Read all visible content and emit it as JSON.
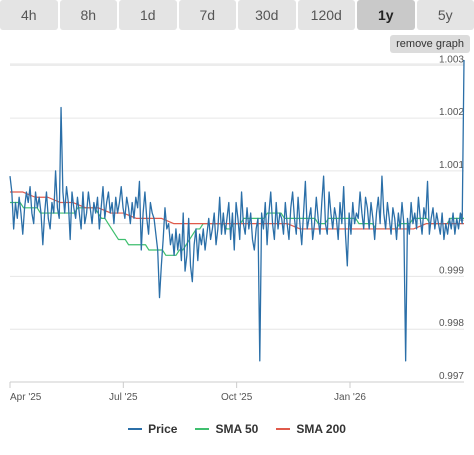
{
  "tabs": [
    {
      "label": "4h",
      "active": false
    },
    {
      "label": "8h",
      "active": false
    },
    {
      "label": "1d",
      "active": false
    },
    {
      "label": "7d",
      "active": false
    },
    {
      "label": "30d",
      "active": false
    },
    {
      "label": "120d",
      "active": false
    },
    {
      "label": "1y",
      "active": true
    },
    {
      "label": "5y",
      "active": false
    }
  ],
  "remove_graph_label": "remove graph",
  "colors": {
    "price": "#2b6fa8",
    "sma50": "#3fbf6f",
    "sma200": "#e05a4b"
  },
  "chart_data": {
    "type": "line",
    "x_ticks": [
      "Apr '25",
      "Jul '25",
      "Oct '25",
      "Jan '26"
    ],
    "y_ticks": [
      "1.003",
      "1.002",
      "1.001",
      "1",
      "0.999",
      "0.998",
      "0.997"
    ],
    "ylim": [
      0.997,
      1.0031
    ],
    "grid": true,
    "legend": "bottom",
    "series": [
      {
        "name": "Price",
        "key": "price"
      },
      {
        "name": "SMA 50",
        "key": "sma50"
      },
      {
        "name": "SMA 200",
        "key": "sma200"
      }
    ],
    "price_values": [
      1.0009,
      1.0006,
      0.9999,
      1.0004,
      1.0001,
      1.0005,
      1.0002,
      0.9998,
      1.0003,
      1.0006,
      1.0004,
      1.0007,
      1.0002,
      1.0,
      1.0006,
      1.0003,
      1.0005,
      1.0002,
      0.9996,
      1.0002,
      1.0006,
      1.0001,
      0.9999,
      1.0004,
      1.0002,
      1.001,
      1.0003,
      1.0001,
      1.0022,
      1.0006,
      1.0002,
      1.0007,
      1.0004,
      0.9997,
      1.0006,
      1.0003,
      1.0001,
      1.0005,
      1.0002,
      0.9999,
      1.0006,
      1.0,
      1.0002,
      1.0006,
      1.0003,
      1.0,
      1.0004,
      1.0002,
      1.0005,
      0.9999,
      1.0003,
      1.0007,
      1.0001,
      1.0004,
      1.0006,
      1.0002,
      1.0004,
      1.0,
      1.0005,
      1.0002,
      1.0004,
      1.0007,
      1.0003,
      1.0001,
      1.0005,
      1.0003,
      1.0,
      1.0004,
      1.0001,
      1.0005,
      1.0003,
      1.0008,
      0.9995,
      1.0002,
      1.0006,
      1.0001,
      0.9998,
      1.0004,
      1.0002,
      1.0001,
      0.9998,
      0.9995,
      0.9986,
      0.9992,
      0.9997,
      1.0003,
      0.9999,
      1.0,
      0.9996,
      0.9998,
      0.9994,
      0.9999,
      0.9995,
      0.9998,
      0.9993,
      1.0002,
      0.9991,
      0.9994,
      1.0001,
      0.9992,
      0.9989,
      0.9996,
      0.9999,
      0.9993,
      0.9998,
      0.9996,
      0.9999,
      0.9995,
      0.9998,
      1.0001,
      0.9997,
      0.9999,
      1.0002,
      0.9996,
      0.9999,
      1.0005,
      0.9998,
      1.0002,
      0.9998,
      1.0001,
      1.0004,
      0.9997,
      1.0002,
      0.9995,
      1.0004,
      1.0001,
      0.9997,
      1.0006,
      1.0,
      0.9998,
      1.0003,
      0.9999,
      1.0002,
      0.9997,
      0.9995,
      0.9999,
      1.0001,
      0.9974,
      1.0002,
      0.9999,
      1.0004,
      0.9996,
      1.0002,
      1.0006,
      1.0,
      0.9997,
      1.0004,
      0.9999,
      1.0002,
      1.0001,
      0.9998,
      1.0004,
      1.0,
      0.9997,
      1.0003,
      1.0006,
      1.0001,
      0.9998,
      1.0005,
      1.0,
      0.9996,
      1.0002,
      1.0008,
      0.9999,
      1.0001,
      1.0003,
      0.9997,
      1.0,
      1.0005,
      1.0001,
      0.9998,
      1.0004,
      1.0009,
      1.0,
      0.9998,
      1.0006,
      1.0002,
      0.9999,
      1.0003,
      1.0001,
      0.9997,
      1.0004,
      1.0,
      1.0007,
      0.9998,
      0.9992,
      1.0002,
      0.9998,
      1.0004,
      1.0,
      1.0002,
      1.0001,
      1.0006,
      1.0002,
      0.9999,
      1.0005,
      1.0003,
      0.9999,
      1.0004,
      1.0001,
      0.9997,
      1.0002,
      1.0005,
      1.0,
      1.0009,
      1.0002,
      0.9999,
      1.0004,
      1.0001,
      0.9998,
      1.0003,
      1.0001,
      0.9997,
      1.0002,
      0.9999,
      1.0004,
      1.0,
      0.9974,
      1.0001,
      0.9998,
      1.0004,
      1.0,
      1.0002,
      0.9999,
      1.0005,
      1.0001,
      0.9998,
      1.0003,
      1.0001,
      1.0008,
      0.9998,
      1.0001,
      1.0003,
      0.9999,
      1.0002,
      1.0,
      0.9998,
      1.0002,
      0.9997,
      1.0,
      0.9998,
      1.0001,
      0.9999,
      1.0002,
      0.9998,
      1.0001,
      0.9999,
      1.0002,
      1.0,
      1.0031
    ],
    "sma50_values": [
      1.0004,
      1.0004,
      1.0004,
      1.0004,
      1.0003,
      1.0003,
      1.0003,
      1.0003,
      1.0003,
      1.0002,
      1.0002,
      1.0002,
      1.0002,
      1.0002,
      1.0002,
      1.0002,
      1.0002,
      1.0002,
      1.0002,
      1.0002,
      1.0003,
      1.0003,
      1.0003,
      1.0003,
      1.0003,
      1.0003,
      1.0002,
      1.0001,
      1.0001,
      1.0,
      0.9999,
      0.9998,
      0.9997,
      0.9997,
      0.9997,
      0.9996,
      0.9996,
      0.9996,
      0.9996,
      0.9996,
      0.9996,
      0.9995,
      0.9995,
      0.9995,
      0.9995,
      0.9995,
      0.9994,
      0.9994,
      0.9994,
      0.9994,
      0.9995,
      0.9995,
      0.9996,
      0.9997,
      0.9998,
      0.9999,
      0.9999,
      1.0,
      1.0,
      1.0,
      1.0,
      1.0,
      1.0,
      1.0,
      0.9999,
      0.9999,
      1.0,
      1.0,
      1.0,
      1.0001,
      1.0001,
      1.0001,
      1.0001,
      1.0001,
      1.0001,
      1.0001,
      1.0002,
      1.0002,
      1.0002,
      1.0002,
      1.0002,
      1.0001,
      1.0001,
      1.0001,
      1.0001,
      1.0001,
      1.0001,
      1.0001,
      1.0001,
      1.0001,
      1.0001,
      1.0,
      1.0,
      1.0,
      1.0001,
      1.0001,
      1.0001,
      1.0001,
      1.0001,
      1.0001,
      1.0001,
      1.0001,
      1.0001,
      1.0,
      1.0,
      1.0,
      1.0,
      1.0,
      0.9999,
      0.9999,
      0.9999,
      0.9999,
      0.9999,
      0.9999,
      0.9999,
      1.0,
      1.0,
      1.0,
      1.0,
      1.0001,
      1.0001,
      1.0001,
      1.0001,
      1.0001,
      1.0,
      1.0,
      1.0,
      1.0,
      1.0,
      1.0,
      1.0001,
      1.0001,
      1.0001,
      1.0001,
      1.0001
    ],
    "sma50_start_index": 0,
    "sma200_values": [
      1.0006,
      1.0006,
      1.0005,
      1.0005,
      1.0004,
      1.0004,
      1.0003,
      1.0003,
      1.0002,
      1.0002,
      1.0001,
      1.0001,
      1.0001,
      1.0,
      1.0,
      1.0,
      1.0,
      1.0,
      1.0,
      1.0,
      1.0,
      1.0,
      1.0,
      0.9999,
      0.9999,
      0.9999,
      0.9999,
      0.9999,
      0.9999,
      0.9999,
      0.9999,
      0.9999,
      0.9999,
      1.0,
      1.0,
      1.0,
      1.0
    ]
  },
  "legend_items": [
    {
      "label": "Price"
    },
    {
      "label": "SMA 50"
    },
    {
      "label": "SMA 200"
    }
  ]
}
